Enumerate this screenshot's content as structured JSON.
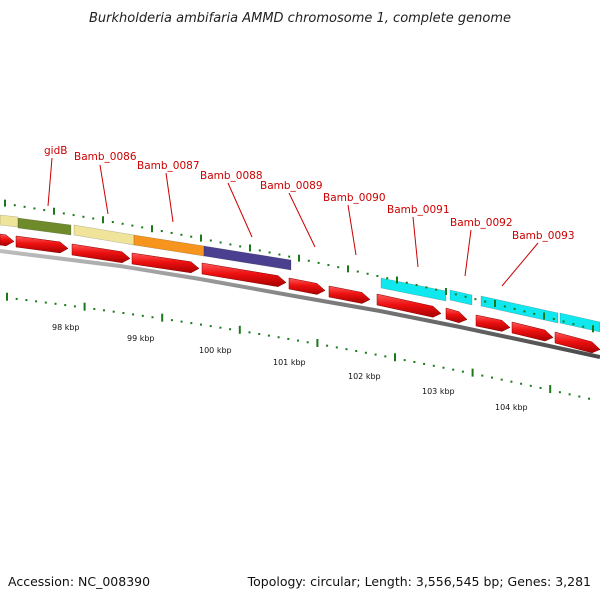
{
  "title": "Burkholderia ambifaria AMMD chromosome 1, complete genome",
  "footer": {
    "accession": "Accession: NC_008390",
    "summary": "Topology: circular; Length: 3,556,545 bp; Genes: 3,281"
  },
  "genes": [
    {
      "label": "gidB"
    },
    {
      "label": "Bamb_0086"
    },
    {
      "label": "Bamb_0087"
    },
    {
      "label": "Bamb_0088"
    },
    {
      "label": "Bamb_0089"
    },
    {
      "label": "Bamb_0090"
    },
    {
      "label": "Bamb_0091"
    },
    {
      "label": "Bamb_0092"
    },
    {
      "label": "Bamb_0093"
    }
  ],
  "scale_labels": [
    "98 kbp",
    "99 kbp",
    "100 kbp",
    "101 kbp",
    "102 kbp",
    "103 kbp",
    "104 kbp"
  ],
  "colors": {
    "gene_label": "#cc0000",
    "cds_arrow": "#ee1111",
    "tick": "#1a7a1a",
    "backbone": "#8a8a8a",
    "cog_pale_yellow": "#efe49a",
    "cog_olive": "#6f8a2a",
    "cog_orange": "#f7941d",
    "cog_purple": "#4b3f8f",
    "cog_cyan": "#10e8f0"
  }
}
